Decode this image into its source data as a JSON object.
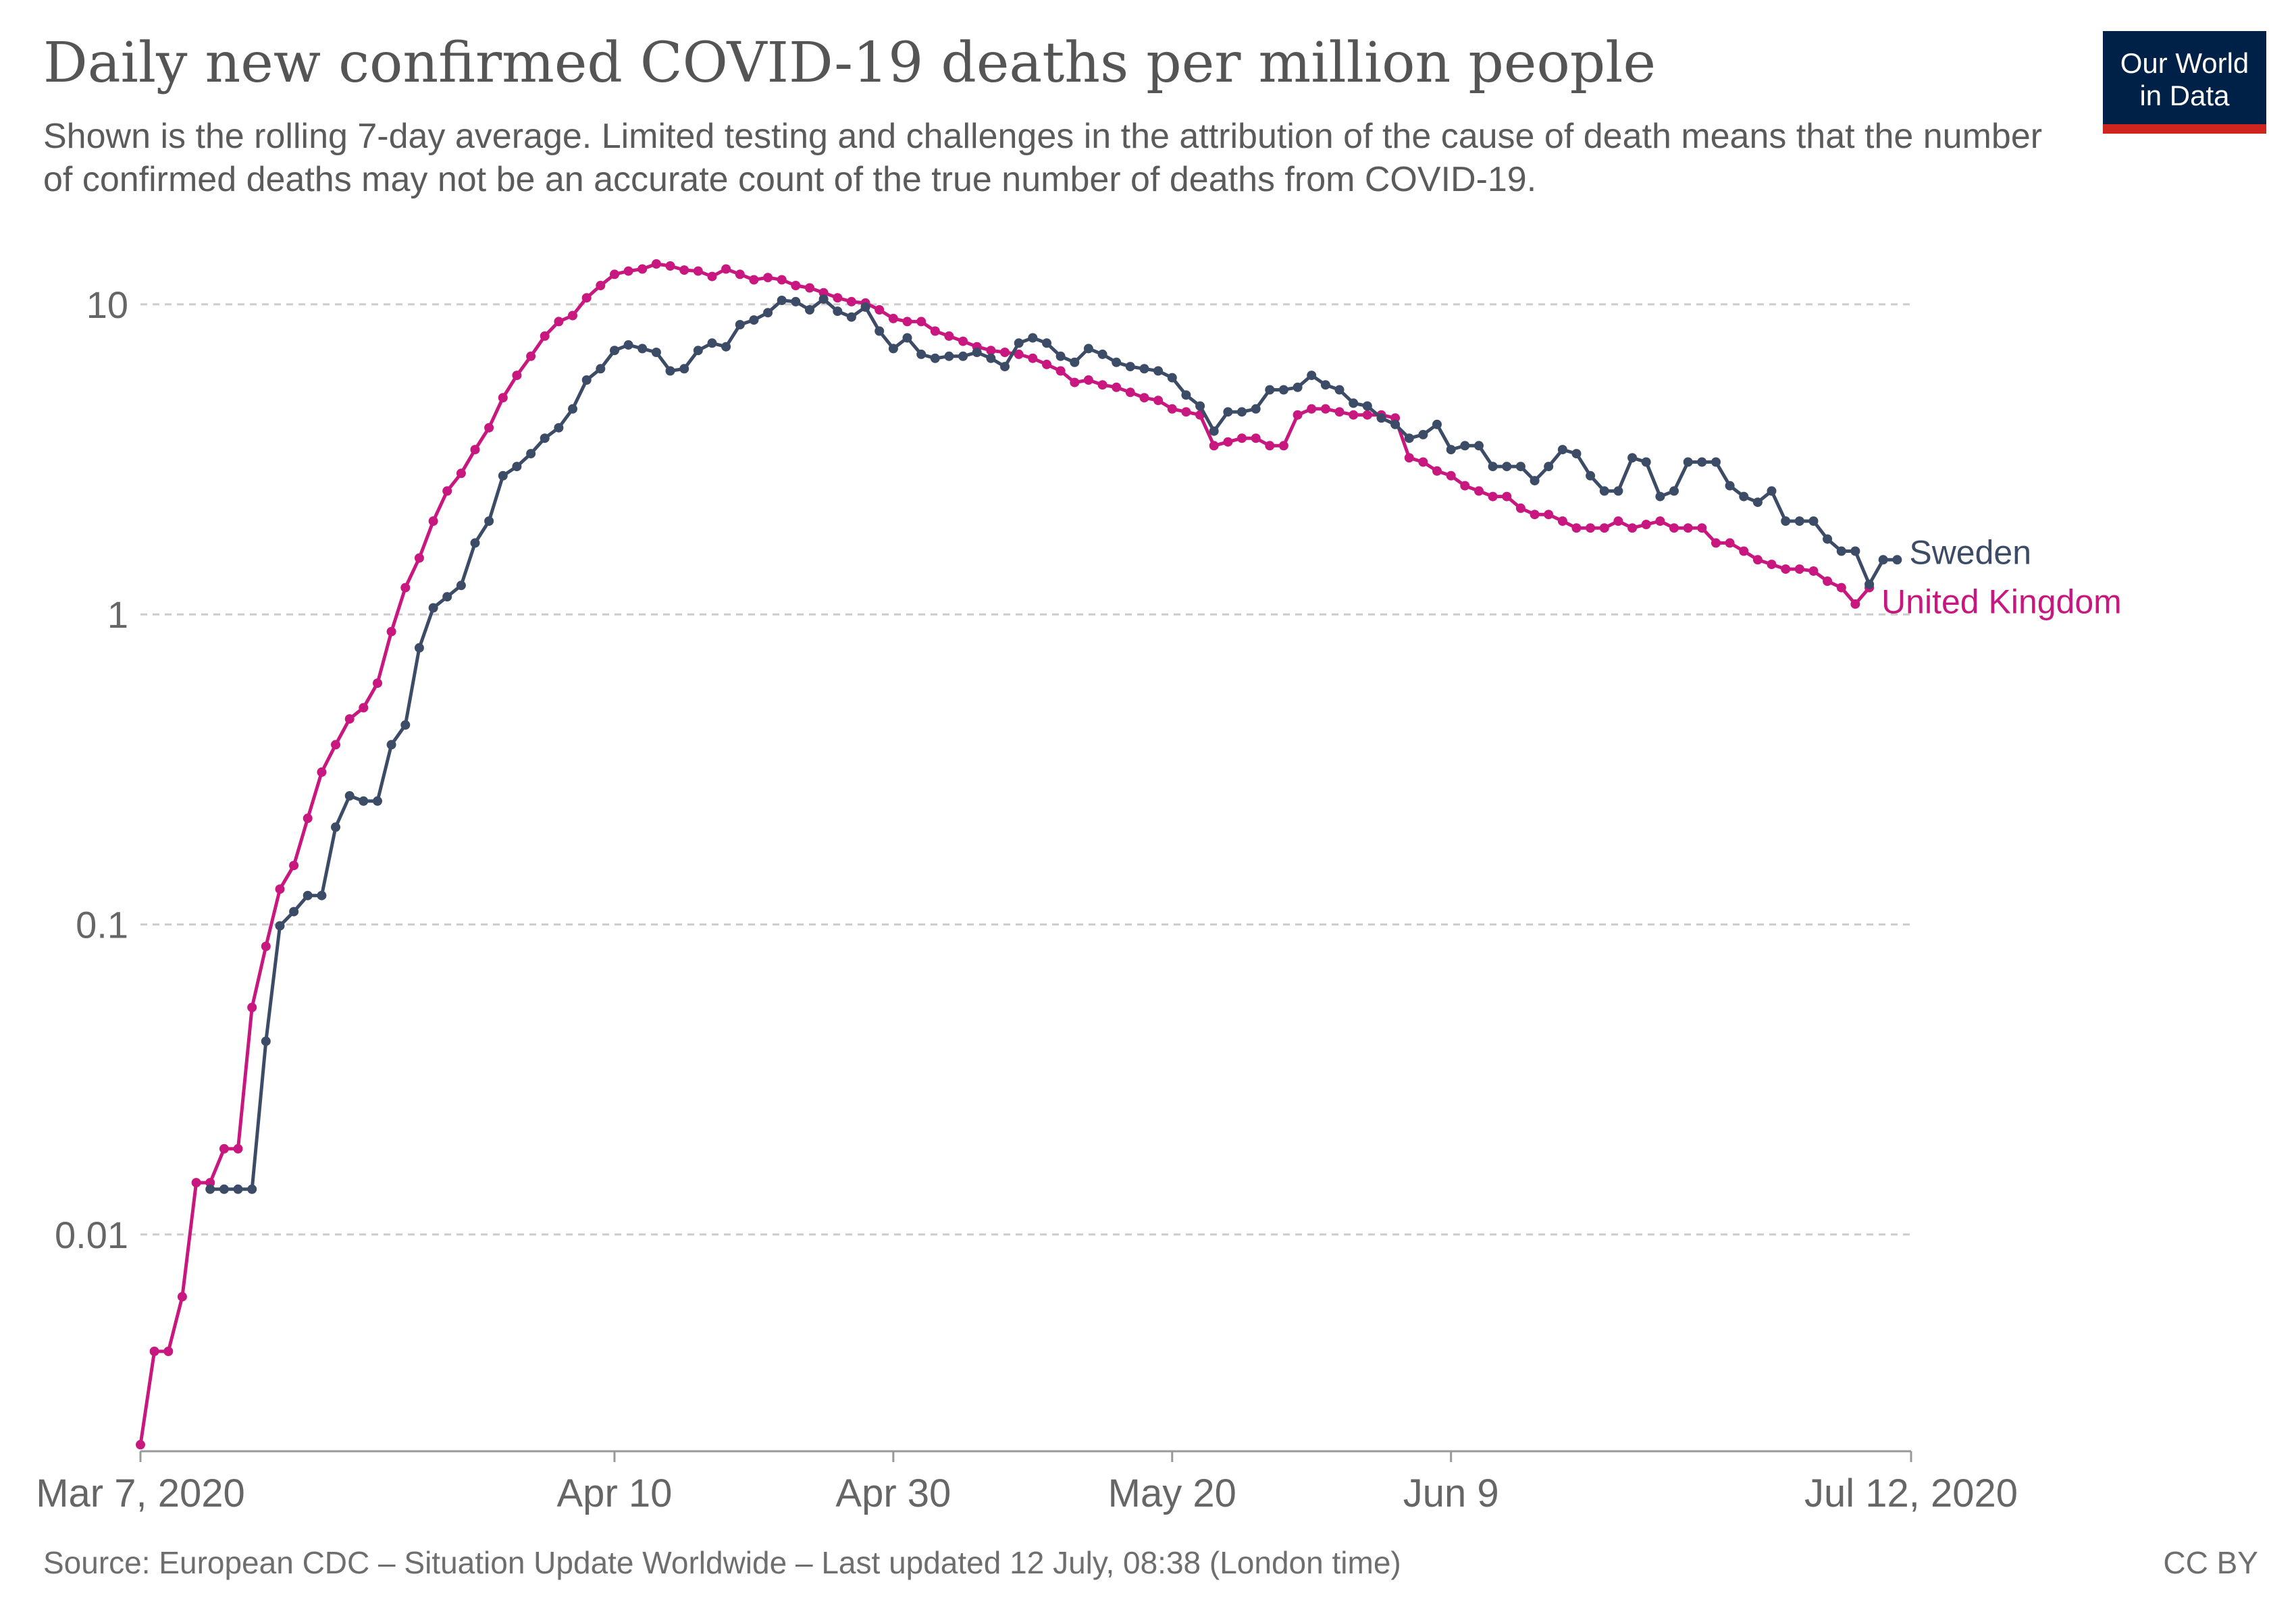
{
  "header": {
    "title": "Daily new confirmed COVID-19 deaths per million people",
    "subtitle": "Shown is the rolling 7-day average. Limited testing and challenges in the attribution of the cause of death means that the number of confirmed deaths may not be an accurate count of the true number of deaths from COVID-19."
  },
  "logo": {
    "line1": "Our World",
    "line2": "in Data",
    "bg_color": "#002147",
    "accent_color": "#ce261e"
  },
  "footer": {
    "source": "Source: European CDC – Situation Update Worldwide – Last updated 12 July, 08:38 (London time)",
    "license": "CC BY"
  },
  "chart_data": {
    "type": "line",
    "title": "Daily new confirmed COVID-19 deaths per million people",
    "xlabel": "",
    "ylabel": "",
    "x_start": "2020-03-07",
    "x_end": "2020-07-12",
    "xlim": [
      "2020-03-07",
      "2020-07-12"
    ],
    "x_ticks": [
      {
        "date": "2020-03-07",
        "label": "Mar 7, 2020"
      },
      {
        "date": "2020-04-10",
        "label": "Apr 10"
      },
      {
        "date": "2020-04-30",
        "label": "Apr 30"
      },
      {
        "date": "2020-05-20",
        "label": "May 20"
      },
      {
        "date": "2020-06-09",
        "label": "Jun 9"
      },
      {
        "date": "2020-07-12",
        "label": "Jul 12, 2020"
      }
    ],
    "y_scale": "log",
    "ylim": [
      0.002,
      15
    ],
    "y_ticks": [
      {
        "value": 10,
        "label": "10"
      },
      {
        "value": 1,
        "label": "1"
      },
      {
        "value": 0.1,
        "label": "0.1"
      },
      {
        "value": 0.01,
        "label": "0.01"
      }
    ],
    "grid": "horizontal dashed",
    "legend": "inline labels at line ends (right)",
    "series": [
      {
        "name": "United Kingdom",
        "color": "#c8177f",
        "start_date": "2020-03-07",
        "values": [
          0.0021,
          0.0042,
          0.0042,
          0.0063,
          0.0147,
          0.0147,
          0.0189,
          0.0189,
          0.054,
          0.085,
          0.13,
          0.155,
          0.22,
          0.31,
          0.38,
          0.46,
          0.5,
          0.6,
          0.88,
          1.22,
          1.52,
          2.0,
          2.5,
          2.85,
          3.4,
          4.0,
          5.0,
          5.9,
          6.8,
          7.9,
          8.8,
          9.2,
          10.5,
          11.5,
          12.5,
          12.8,
          13.0,
          13.5,
          13.3,
          12.9,
          12.8,
          12.3,
          13.0,
          12.5,
          12.0,
          12.2,
          12.0,
          11.5,
          11.3,
          10.9,
          10.5,
          10.2,
          10.1,
          9.6,
          9.0,
          8.8,
          8.8,
          8.2,
          7.9,
          7.6,
          7.3,
          7.1,
          7.0,
          6.9,
          6.7,
          6.4,
          6.1,
          5.6,
          5.7,
          5.5,
          5.4,
          5.2,
          5.0,
          4.9,
          4.6,
          4.5,
          4.4,
          3.5,
          3.6,
          3.7,
          3.7,
          3.5,
          3.5,
          4.4,
          4.6,
          4.6,
          4.5,
          4.4,
          4.4,
          4.4,
          4.3,
          3.2,
          3.1,
          2.9,
          2.8,
          2.6,
          2.5,
          2.4,
          2.4,
          2.2,
          2.1,
          2.1,
          2.0,
          1.9,
          1.9,
          1.9,
          2.0,
          1.9,
          1.95,
          2.0,
          1.9,
          1.9,
          1.9,
          1.7,
          1.7,
          1.6,
          1.5,
          1.45,
          1.4,
          1.4,
          1.38,
          1.28,
          1.22,
          1.08,
          1.22
        ]
      },
      {
        "name": "Sweden",
        "color": "#3c4c66",
        "start_date": "2020-03-12",
        "values": [
          0.014,
          0.014,
          0.014,
          0.014,
          0.042,
          0.099,
          0.11,
          0.124,
          0.124,
          0.206,
          0.26,
          0.25,
          0.25,
          0.38,
          0.44,
          0.78,
          1.05,
          1.14,
          1.24,
          1.7,
          2.0,
          2.8,
          3.0,
          3.3,
          3.7,
          4.0,
          4.6,
          5.7,
          6.2,
          7.1,
          7.4,
          7.2,
          7.0,
          6.1,
          6.2,
          7.1,
          7.5,
          7.3,
          8.6,
          8.9,
          9.4,
          10.3,
          10.2,
          9.6,
          10.4,
          9.5,
          9.1,
          9.8,
          8.2,
          7.2,
          7.8,
          6.9,
          6.7,
          6.8,
          6.8,
          7.0,
          6.7,
          6.3,
          7.5,
          7.8,
          7.5,
          6.8,
          6.5,
          7.2,
          6.9,
          6.5,
          6.3,
          6.2,
          6.1,
          5.8,
          5.1,
          4.7,
          3.9,
          4.5,
          4.5,
          4.6,
          5.3,
          5.3,
          5.4,
          5.9,
          5.5,
          5.3,
          4.8,
          4.7,
          4.3,
          4.1,
          3.7,
          3.8,
          4.1,
          3.4,
          3.5,
          3.5,
          3.0,
          3.0,
          3.0,
          2.7,
          3.0,
          3.4,
          3.3,
          2.8,
          2.5,
          2.5,
          3.2,
          3.1,
          2.4,
          2.5,
          3.1,
          3.1,
          3.1,
          2.6,
          2.4,
          2.3,
          2.5,
          2.0,
          2.0,
          2.0,
          1.75,
          1.6,
          1.6,
          1.25,
          1.5,
          1.5
        ]
      }
    ]
  }
}
